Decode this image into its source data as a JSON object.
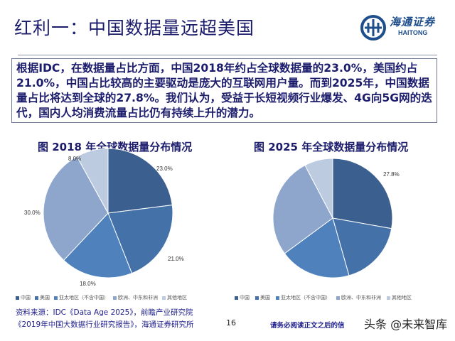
{
  "header": {
    "title": "红利一：中国数据量远超美国",
    "logo_cn": "海通证券",
    "logo_en": "HAITONG"
  },
  "summary": "根据IDC，在数据量占比方面，中国2018年约占全球数据量的23.0%，美国约占21.0%，中国占比较高的主要驱动是庞大的互联网用户量。而到2025年，中国数据量占比将达到全球的27.8%。我们认为，受益于长短视频行业爆发、4G向5G网的迭代，国内人均消费流量占比仍有持续上升的潜力。",
  "chart_data": [
    {
      "type": "pie",
      "title": "图 2018 年全球数据量分布情况",
      "categories": [
        "中国",
        "美国",
        "亚太地区（不含中国）",
        "欧洲、中东和非洲",
        "其他地区"
      ],
      "values": [
        23.0,
        21.0,
        18.0,
        30.0,
        8.0
      ],
      "labels": [
        "23.0%",
        "21.0%",
        "18.0%",
        "30.0%",
        "8.0%"
      ],
      "colors": [
        "#3b5f8e",
        "#4472a8",
        "#4f81bd",
        "#8ea6cc",
        "#bccbe0"
      ],
      "legend": "bottom"
    },
    {
      "type": "pie",
      "title": "图 2025 年全球数据量分布情况",
      "categories": [
        "中国",
        "美国",
        "亚太地区（不含中国）",
        "欧洲、中东和非洲",
        "其他地区"
      ],
      "values": [
        27.8,
        17.8,
        19.3,
        27.4,
        7.7
      ],
      "labels": [
        "27.8%"
      ],
      "colors": [
        "#3b5f8e",
        "#4472a8",
        "#4f81bd",
        "#8ea6cc",
        "#bccbe0"
      ],
      "legend": "bottom"
    }
  ],
  "source": {
    "line1": "资料来源：IDC《Data Age 2025》，前瞻产业研究院",
    "line2": "《2019年中国大数据行业研究报告》，海通证券研究所"
  },
  "page_number": "16",
  "footer": "请务必阅读正文之后的信",
  "watermark": "头条 @未来智库"
}
